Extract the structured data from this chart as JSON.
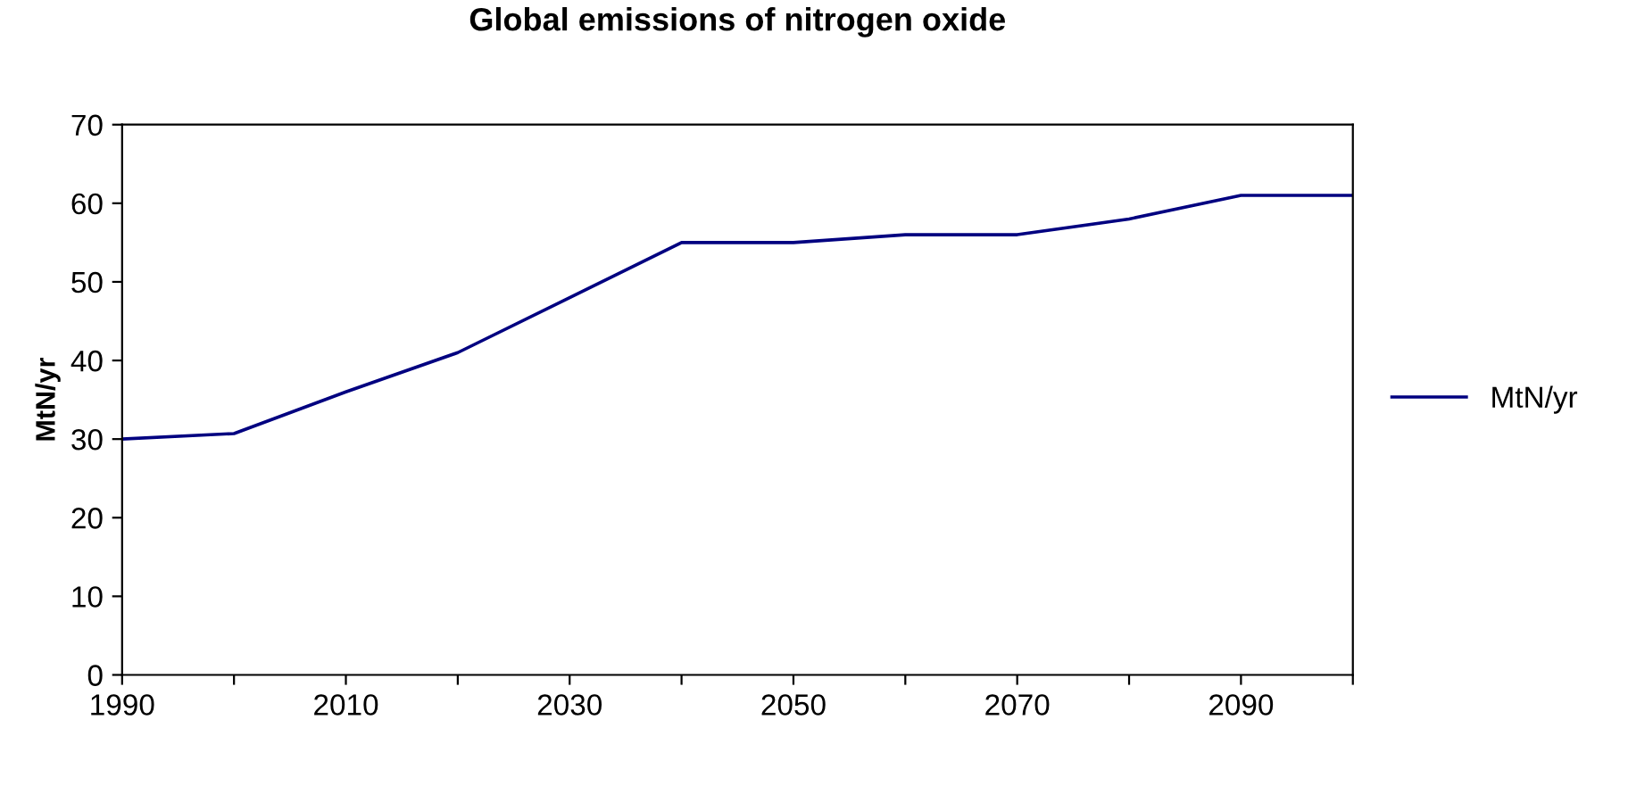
{
  "chart_data": {
    "type": "line",
    "title": "Global emissions of nitrogen oxide",
    "ylabel": "MtN/yr",
    "x": [
      1990,
      2000,
      2010,
      2020,
      2030,
      2040,
      2050,
      2060,
      2070,
      2080,
      2090,
      2100
    ],
    "series": [
      {
        "name": "MtN/yr",
        "color": "#000080",
        "values": [
          30,
          30.7,
          36,
          41,
          48,
          55,
          55,
          56,
          56,
          58,
          61,
          61
        ]
      }
    ],
    "xlim": [
      1990,
      2100
    ],
    "xticks": [
      1990,
      {
        "value": 2000,
        "label": null
      },
      2010,
      {
        "value": 2020,
        "label": null
      },
      2030,
      {
        "value": 2040,
        "label": null
      },
      2050,
      {
        "value": 2060,
        "label": null
      },
      2070,
      {
        "value": 2080,
        "label": null
      },
      2090,
      {
        "value": 2100,
        "label": null
      }
    ],
    "ylim": [
      0,
      70
    ],
    "yticks": [
      0,
      10,
      20,
      30,
      40,
      50,
      60,
      70
    ],
    "grid": false,
    "legend": "right",
    "marker": "none",
    "line_style": "solid"
  }
}
